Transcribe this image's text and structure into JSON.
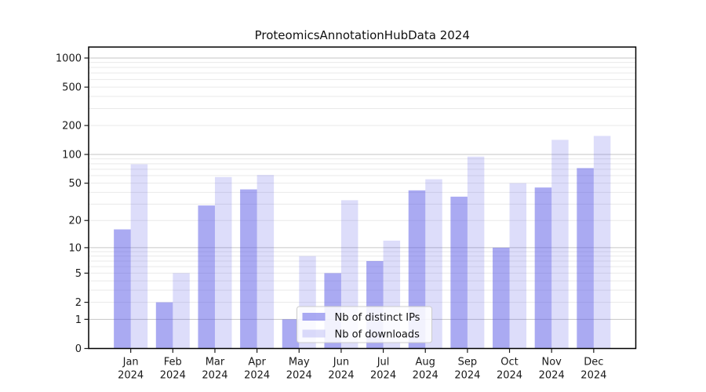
{
  "title": "ProteomicsAnnotationHubData 2024",
  "colors": {
    "bar_ips": "rgba(85,85,230,0.5)",
    "bar_downloads": "rgba(85,85,230,0.2)",
    "grid_major": "#c6c6c6",
    "grid_minor": "#e9e9e9",
    "axis_frame": "#000000",
    "tick_text": "#1a1a1a",
    "legend_border": "#cccccc",
    "legend_bg": "rgba(255,255,255,0.85)"
  },
  "chart_data": {
    "type": "bar",
    "title": "ProteomicsAnnotationHubData 2024",
    "xlabel": "",
    "ylabel": "",
    "yscale": "log1p",
    "ylim": [
      0,
      1300
    ],
    "grid": true,
    "yticks": [
      0,
      1,
      2,
      5,
      10,
      20,
      50,
      100,
      200,
      500,
      1000
    ],
    "ytick_labels": [
      "0",
      "1",
      "2",
      "5",
      "10",
      "20",
      "50",
      "100",
      "200",
      "500",
      "1000"
    ],
    "categories": [
      "Jan 2024",
      "Feb 2024",
      "Mar 2024",
      "Apr 2024",
      "May 2024",
      "Jun 2024",
      "Jul 2024",
      "Aug 2024",
      "Sep 2024",
      "Oct 2024",
      "Nov 2024",
      "Dec 2024"
    ],
    "series": [
      {
        "name": "Nb of distinct IPs",
        "values": [
          16,
          2,
          29,
          43,
          1,
          5,
          7,
          42,
          36,
          10,
          45,
          72
        ]
      },
      {
        "name": "Nb of downloads",
        "values": [
          79,
          5,
          58,
          61,
          8,
          33,
          12,
          55,
          95,
          50,
          142,
          156
        ]
      }
    ],
    "legend_position": "bottom-center",
    "legend_labels": [
      "Nb of distinct IPs",
      "Nb of downloads"
    ]
  }
}
